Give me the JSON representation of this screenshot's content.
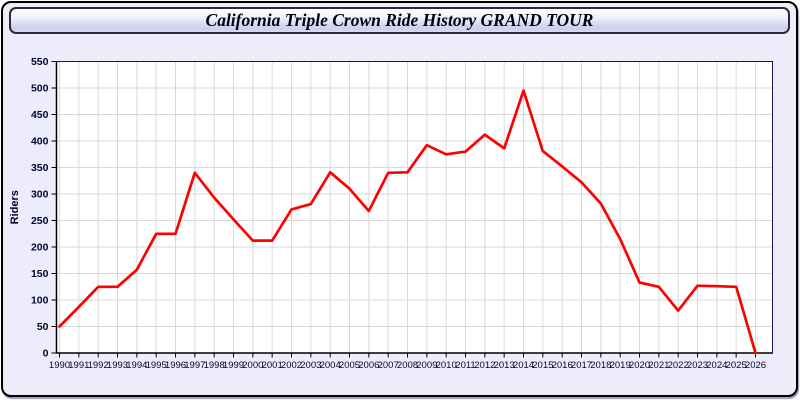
{
  "window": {
    "title": "California Triple Crown Ride History GRAND TOUR"
  },
  "chart_data": {
    "type": "line",
    "title": "California Triple Crown Ride History GRAND TOUR",
    "xlabel": "",
    "ylabel": "Riders",
    "x": [
      1990,
      1991,
      1992,
      1993,
      1994,
      1995,
      1996,
      1997,
      1998,
      1999,
      2000,
      2001,
      2002,
      2003,
      2004,
      2005,
      2006,
      2007,
      2008,
      2009,
      2010,
      2011,
      2012,
      2013,
      2014,
      2015,
      2016,
      2017,
      2018,
      2019,
      2020,
      2021,
      2022,
      2023,
      2024,
      2025,
      2026
    ],
    "series": [
      {
        "name": "Riders",
        "values": [
          50,
          87,
          125,
          125,
          157,
          225,
          225,
          340,
          293,
          252,
          212,
          212,
          271,
          281,
          341,
          310,
          268,
          340,
          341,
          392,
          375,
          380,
          412,
          386,
          495,
          381,
          352,
          322,
          282,
          215,
          133,
          125,
          80,
          127,
          126,
          125,
          0
        ]
      }
    ],
    "ylim": [
      0,
      550
    ],
    "ytick_step": 50,
    "grid": true,
    "legend": "none",
    "colors": {
      "line": "#ff0000",
      "plot_bg": "#ffffff",
      "grid": "#d9d9d9",
      "plot_border": "#17174d",
      "axis": "#000000",
      "page_bg": "#ececfa",
      "tick_text": "#06062e"
    }
  }
}
